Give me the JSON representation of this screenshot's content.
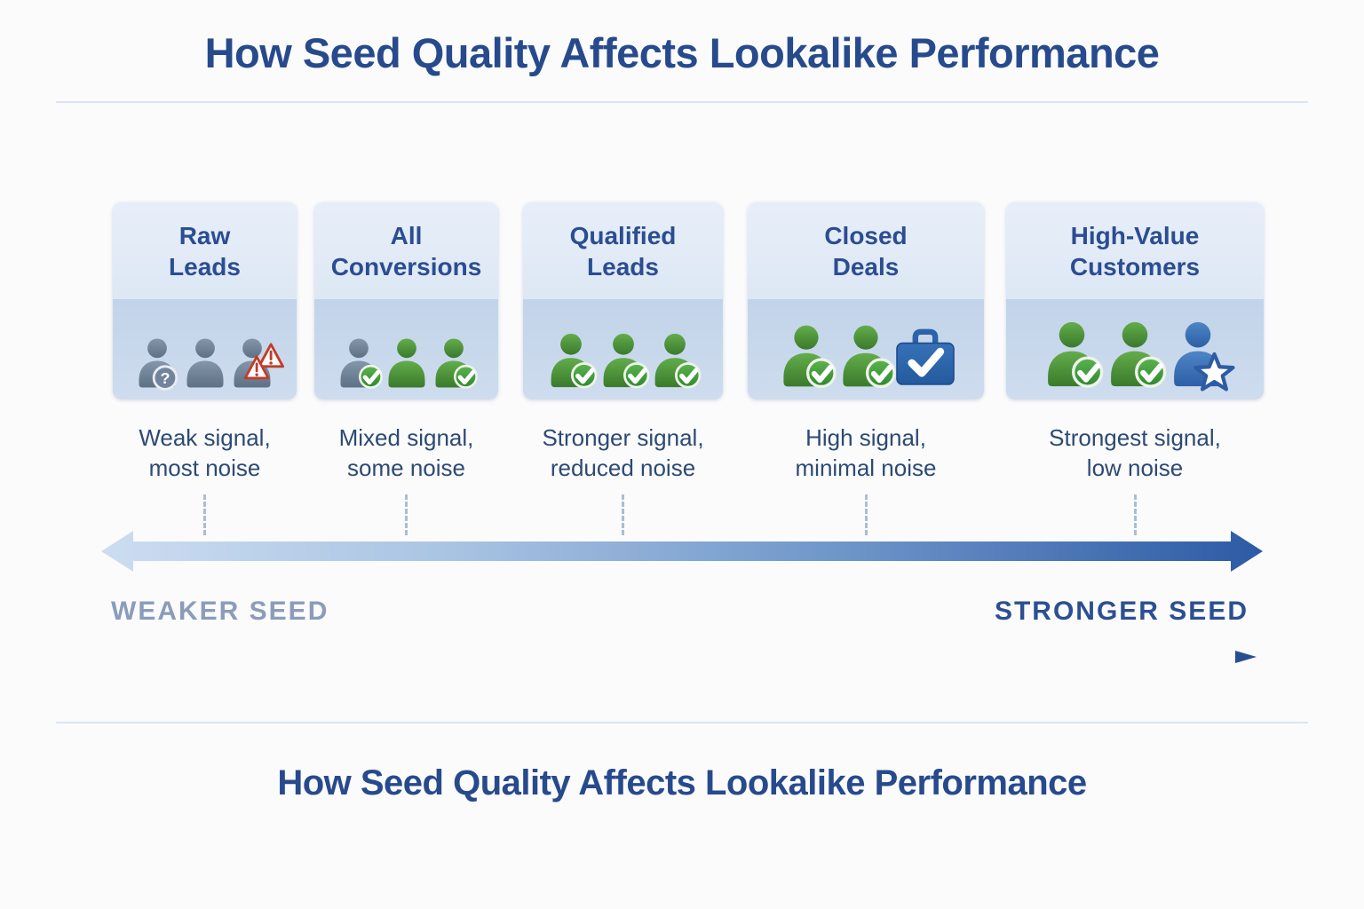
{
  "header": {
    "title": "How Seed Quality Affects Lookalike Performance"
  },
  "footer": {
    "title": "How Seed Quality Affects Lookalike Performance"
  },
  "scale": {
    "left_label": "WEAKER SEED",
    "right_label": "STRONGER SEED"
  },
  "colors": {
    "title_blue": "#274a8d",
    "card_title_blue": "#2b4d92",
    "caption_blue": "#2c4a73",
    "weaker_label": "#8a9cb9",
    "stronger_label": "#2c4f92",
    "card_top_bg": "#e2ebf7",
    "card_icon_band_bg": "#c6d7ea",
    "person_gray": "#68798e",
    "person_green": "#4a9138",
    "person_blue": "#3a6fb0",
    "check_green": "#3f9a3a",
    "warning_red": "#c0392b",
    "briefcase_blue": "#2a66ae",
    "arrow_gradient_start": "#ccddf1",
    "arrow_gradient_end": "#2d5aa5"
  },
  "cards": [
    {
      "title_line1": "Raw",
      "title_line2": "Leads",
      "caption_line1": "Weak signal,",
      "caption_line2": "most noise",
      "icons": [
        {
          "type": "person",
          "color": "gray",
          "badge": "question",
          "name": "person-question-icon"
        },
        {
          "type": "person",
          "color": "gray",
          "badge": null,
          "name": "person-icon"
        },
        {
          "type": "person",
          "color": "gray",
          "badge": "warning",
          "name": "person-warning-icon"
        }
      ]
    },
    {
      "title_line1": "All",
      "title_line2": "Conversions",
      "caption_line1": "Mixed signal,",
      "caption_line2": "some noise",
      "icons": [
        {
          "type": "person",
          "color": "gray",
          "badge": "check",
          "name": "person-check-icon"
        },
        {
          "type": "person",
          "color": "green",
          "badge": null,
          "name": "person-icon"
        },
        {
          "type": "person",
          "color": "green",
          "badge": "check",
          "name": "person-check-icon"
        }
      ]
    },
    {
      "title_line1": "Qualified",
      "title_line2": "Leads",
      "caption_line1": "Stronger signal,",
      "caption_line2": "reduced noise",
      "icons": [
        {
          "type": "person",
          "color": "green",
          "badge": "check",
          "name": "person-check-icon"
        },
        {
          "type": "person",
          "color": "green",
          "badge": "check",
          "name": "person-check-icon"
        },
        {
          "type": "person",
          "color": "green",
          "badge": "check",
          "name": "person-check-icon"
        }
      ]
    },
    {
      "title_line1": "Closed",
      "title_line2": "Deals",
      "caption_line1": "High signal,",
      "caption_line2": "minimal noise",
      "icons": [
        {
          "type": "person",
          "color": "green",
          "badge": "check",
          "name": "person-check-icon"
        },
        {
          "type": "person",
          "color": "green",
          "badge": "check",
          "name": "person-check-icon"
        },
        {
          "type": "briefcase",
          "name": "briefcase-check-icon"
        }
      ]
    },
    {
      "title_line1": "High-Value",
      "title_line2": "Customers",
      "caption_line1": "Strongest signal,",
      "caption_line2": "low noise",
      "icons": [
        {
          "type": "person",
          "color": "green",
          "badge": "check",
          "name": "person-check-icon"
        },
        {
          "type": "person",
          "color": "green",
          "badge": "check",
          "name": "person-check-icon"
        },
        {
          "type": "person",
          "color": "blue",
          "badge": "star",
          "name": "person-star-icon"
        }
      ]
    }
  ]
}
